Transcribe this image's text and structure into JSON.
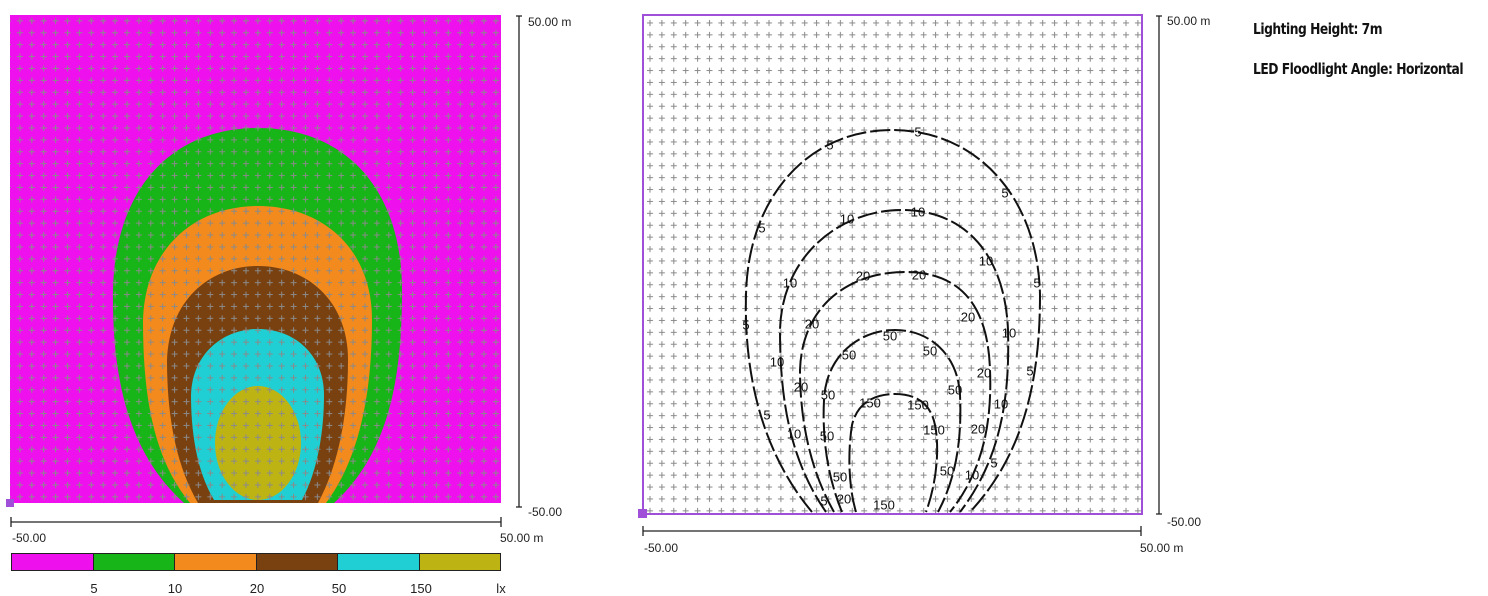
{
  "info": {
    "lighting_height": "Lighting Height: 7m",
    "floodlight_angle": "LED Floodlight Angle: Horizontal"
  },
  "false_color_panel": {
    "y_max_label": "50.00 m",
    "y_min_label": "-50.00",
    "x_min_label": "-50.00",
    "x_max_label": "50.00 m",
    "fill_colors": {
      "below_5": "#ee11ee",
      "5_to_10": "#17b517",
      "10_to_20": "#f28a1d",
      "20_to_50": "#7a4110",
      "50_to_150": "#1fcfd4",
      "above_150": "#bdb414"
    }
  },
  "legend": {
    "colors": [
      "#ee11ee",
      "#17b517",
      "#f28a1d",
      "#7a4110",
      "#1fcfd4",
      "#bdb414"
    ],
    "labels": [
      "5",
      "10",
      "20",
      "50",
      "150"
    ],
    "unit": "lx"
  },
  "isoline_panel": {
    "y_max_label": "50.00 m",
    "y_min_label": "-50.00",
    "x_min_label": "-50.00",
    "x_max_label": "50.00 m",
    "border_color": "#a050d8",
    "contour_labels": {
      "l5": "5",
      "l10": "10",
      "l20": "20",
      "l50": "50",
      "l150": "150"
    }
  }
}
